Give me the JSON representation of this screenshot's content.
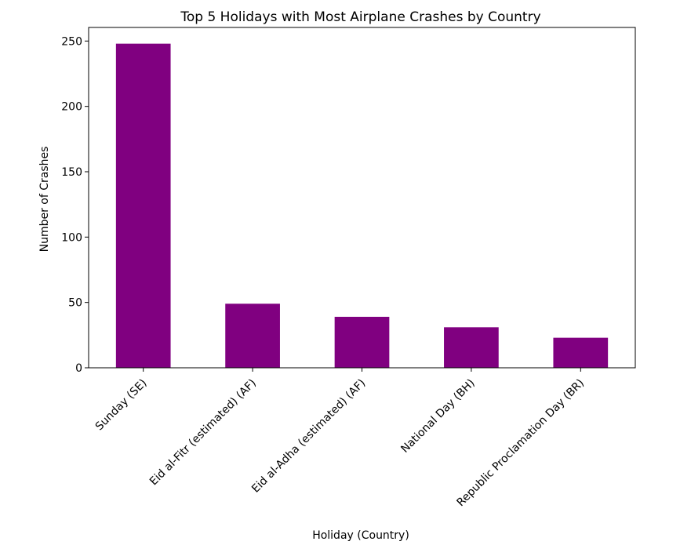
{
  "chart_data": {
    "type": "bar",
    "title": "Top 5 Holidays with Most Airplane Crashes by Country",
    "xlabel": "Holiday (Country)",
    "ylabel": "Number of Crashes",
    "categories": [
      "Sunday (SE)",
      "Eid al-Fitr (estimated) (AF)",
      "Eid al-Adha (estimated) (AF)",
      "National Day (BH)",
      "Republic Proclamation Day (BR)"
    ],
    "values": [
      248,
      49,
      39,
      31,
      23
    ],
    "ylim": [
      0,
      260.4
    ],
    "yticks": [
      0,
      50,
      100,
      150,
      200,
      250
    ],
    "bar_color": "#800080",
    "grid": false,
    "legend": "none"
  }
}
